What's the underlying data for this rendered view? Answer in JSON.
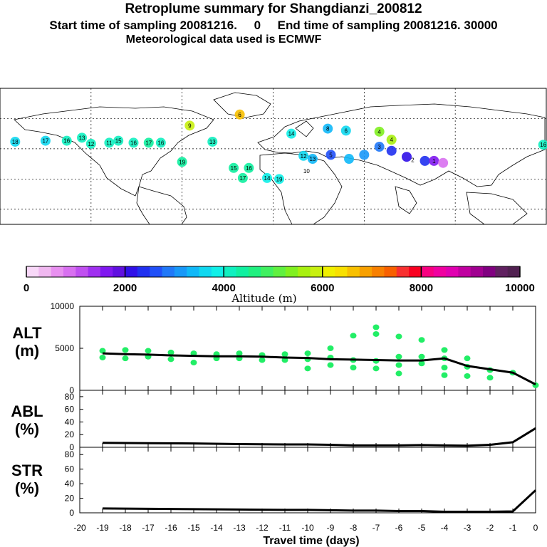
{
  "header": {
    "title": "Retroplume summary for Shangdianzi_200812",
    "sampling": "Start time of sampling 20081216.     0     End time of sampling 20081216. 30000",
    "met": "Meteorological data used is ECMWF"
  },
  "colorbar": {
    "label": "Altitude  (m)",
    "tick_labels": [
      "0",
      "2000",
      "4000",
      "6000",
      "8000",
      "10000"
    ],
    "colors": [
      "#f8d8f8",
      "#f0b8f0",
      "#e890f0",
      "#d870f0",
      "#c050f0",
      "#a030f0",
      "#8018f0",
      "#6010e0",
      "#3010e8",
      "#2030f0",
      "#2050f8",
      "#2078f8",
      "#1898f8",
      "#10b8f8",
      "#10d8f0",
      "#10f0e8",
      "#10f0c0",
      "#10f0a0",
      "#20f080",
      "#40f060",
      "#60f040",
      "#80f020",
      "#a8f010",
      "#c8f010",
      "#f0f000",
      "#f8e000",
      "#f8c000",
      "#f8a000",
      "#f88000",
      "#f86000",
      "#f83030",
      "#f80020",
      "#f80080",
      "#f000a0",
      "#e000b0",
      "#c000a0",
      "#a00090",
      "#800080",
      "#602060",
      "#502050"
    ]
  },
  "map_labels": [
    {
      "t": "18",
      "lon": -170,
      "lat": 37
    },
    {
      "t": "17",
      "lon": -150,
      "lat": 38
    },
    {
      "t": "16",
      "lon": -136,
      "lat": 38
    },
    {
      "t": "13",
      "lon": -126,
      "lat": 41
    },
    {
      "t": "12",
      "lon": -120,
      "lat": 35
    },
    {
      "t": "11",
      "lon": -108,
      "lat": 36
    },
    {
      "t": "15",
      "lon": -102,
      "lat": 38
    },
    {
      "t": "16",
      "lon": -92,
      "lat": 36
    },
    {
      "t": "17",
      "lon": -82,
      "lat": 36
    },
    {
      "t": "16",
      "lon": -74,
      "lat": 36
    },
    {
      "t": "19",
      "lon": -60,
      "lat": 17
    },
    {
      "t": "9",
      "lon": -55,
      "lat": 53
    },
    {
      "t": "13",
      "lon": -40,
      "lat": 37
    },
    {
      "t": "15",
      "lon": -26,
      "lat": 11
    },
    {
      "t": "16",
      "lon": -16,
      "lat": 11
    },
    {
      "t": "17",
      "lon": -20,
      "lat": 1
    },
    {
      "t": "6",
      "lon": -22,
      "lat": 64
    },
    {
      "t": "14",
      "lon": -4,
      "lat": 1
    },
    {
      "t": "19",
      "lon": 4,
      "lat": 0
    },
    {
      "t": "14",
      "lon": 12,
      "lat": 45
    },
    {
      "t": "12",
      "lon": 20,
      "lat": 23
    },
    {
      "t": "13",
      "lon": 26,
      "lat": 20
    },
    {
      "t": "10",
      "lon": 22,
      "lat": 8
    },
    {
      "t": "6",
      "lon": 48,
      "lat": 48
    },
    {
      "t": "8",
      "lon": 36,
      "lat": 50
    },
    {
      "t": "5",
      "lon": 38,
      "lat": 24
    },
    {
      "t": "4",
      "lon": 78,
      "lat": 39
    },
    {
      "t": "3",
      "lon": 70,
      "lat": 32
    },
    {
      "t": "2",
      "lon": 92,
      "lat": 19
    },
    {
      "t": "1",
      "lon": 106,
      "lat": 18
    },
    {
      "t": "4",
      "lon": 70,
      "lat": 47
    },
    {
      "t": "16",
      "lon": 178,
      "lat": 34
    }
  ],
  "chart_data": [
    {
      "type": "scatter",
      "name": "ALT",
      "title": "ALT (m)",
      "ylabel": "ALT\n(m)",
      "ylim": [
        0,
        10000
      ],
      "tick_labels": [
        "0",
        "5000",
        "10000"
      ],
      "xlim": [
        -20,
        0
      ],
      "mean_line": {
        "x": [
          -19,
          -18,
          -17,
          -16,
          -15,
          -14,
          -13,
          -12,
          -11,
          -10,
          -9,
          -8,
          -7,
          -6,
          -5,
          -4,
          -3,
          -2,
          -1,
          0
        ],
        "y": [
          4400,
          4300,
          4250,
          4150,
          4100,
          4050,
          4050,
          4000,
          3900,
          3850,
          3700,
          3650,
          3600,
          3550,
          3550,
          3800,
          2900,
          2500,
          2100,
          700
        ]
      },
      "points": [
        {
          "x": -19,
          "y": 4700
        },
        {
          "x": -19,
          "y": 3900
        },
        {
          "x": -18,
          "y": 4800
        },
        {
          "x": -18,
          "y": 3800
        },
        {
          "x": -17,
          "y": 4700
        },
        {
          "x": -17,
          "y": 4000
        },
        {
          "x": -16,
          "y": 4500
        },
        {
          "x": -16,
          "y": 3700
        },
        {
          "x": -15,
          "y": 4400
        },
        {
          "x": -15,
          "y": 3300
        },
        {
          "x": -14,
          "y": 4300
        },
        {
          "x": -14,
          "y": 3800
        },
        {
          "x": -13,
          "y": 4400
        },
        {
          "x": -13,
          "y": 3800
        },
        {
          "x": -12,
          "y": 4200
        },
        {
          "x": -12,
          "y": 3600
        },
        {
          "x": -11,
          "y": 4300
        },
        {
          "x": -11,
          "y": 3600
        },
        {
          "x": -10,
          "y": 4400
        },
        {
          "x": -10,
          "y": 3700
        },
        {
          "x": -10,
          "y": 2600
        },
        {
          "x": -9,
          "y": 5000
        },
        {
          "x": -9,
          "y": 3900
        },
        {
          "x": -9,
          "y": 3000
        },
        {
          "x": -8,
          "y": 6500
        },
        {
          "x": -8,
          "y": 3600
        },
        {
          "x": -8,
          "y": 2700
        },
        {
          "x": -7,
          "y": 7500
        },
        {
          "x": -7,
          "y": 6700
        },
        {
          "x": -7,
          "y": 3500
        },
        {
          "x": -7,
          "y": 2600
        },
        {
          "x": -6,
          "y": 6400
        },
        {
          "x": -6,
          "y": 4000
        },
        {
          "x": -6,
          "y": 3000
        },
        {
          "x": -6,
          "y": 2000
        },
        {
          "x": -5,
          "y": 6000
        },
        {
          "x": -5,
          "y": 4000
        },
        {
          "x": -5,
          "y": 3200
        },
        {
          "x": -4,
          "y": 4800
        },
        {
          "x": -4,
          "y": 3800
        },
        {
          "x": -4,
          "y": 2700
        },
        {
          "x": -4,
          "y": 1800
        },
        {
          "x": -3,
          "y": 3800
        },
        {
          "x": -3,
          "y": 2800
        },
        {
          "x": -3,
          "y": 1700
        },
        {
          "x": -2,
          "y": 2400
        },
        {
          "x": -2,
          "y": 1500
        },
        {
          "x": -1,
          "y": 2100
        },
        {
          "x": 0,
          "y": 600
        }
      ]
    },
    {
      "type": "line",
      "name": "ABL",
      "ylabel": "ABL\n(%)",
      "ylim": [
        0,
        90
      ],
      "tick_labels": [
        "0",
        "20",
        "40",
        "60",
        "80"
      ],
      "x": [
        -19,
        -17,
        -15,
        -13,
        -11,
        -10,
        -9,
        -8,
        -7,
        -6,
        -5,
        -4,
        -3,
        -2,
        -1,
        0
      ],
      "y": [
        7,
        6.5,
        6,
        5,
        4.5,
        4.5,
        4,
        3,
        3,
        3,
        3.5,
        3,
        2.5,
        4,
        8,
        30
      ]
    },
    {
      "type": "line",
      "name": "STR",
      "ylabel": "STR\n(%)",
      "ylim": [
        0,
        90
      ],
      "tick_labels": [
        "0",
        "20",
        "40",
        "60",
        "80"
      ],
      "x": [
        -19,
        -17,
        -15,
        -13,
        -11,
        -10,
        -9,
        -8,
        -7,
        -6,
        -5,
        -4,
        -3,
        -2,
        -1,
        0
      ],
      "y": [
        6,
        5.5,
        5,
        4.5,
        4,
        4,
        3.5,
        3,
        3,
        2.5,
        2.5,
        1.5,
        1.5,
        1.5,
        2,
        31
      ]
    }
  ],
  "xaxis": {
    "label": "Travel time (days)",
    "tick_labels": [
      "-20",
      "-19",
      "-18",
      "-17",
      "-16",
      "-15",
      "-14",
      "-13",
      "-12",
      "-11",
      "-10",
      "-9",
      "-8",
      "-7",
      "-6",
      "-5",
      "-4",
      "-3",
      "-2",
      "-1",
      "0"
    ]
  }
}
